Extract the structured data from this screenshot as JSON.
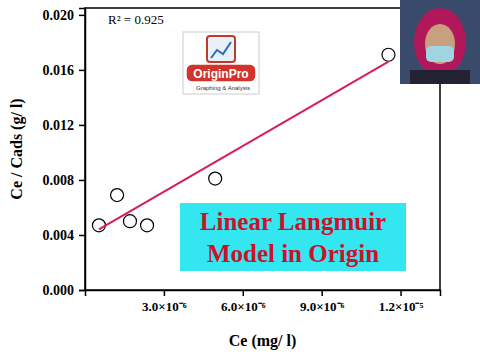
{
  "chart_data": {
    "type": "scatter",
    "title": [
      "Linear Langmuir",
      "Model in Origin"
    ],
    "x_label": "Ce (mg/ l)",
    "y_label": "Ce / Cads (g/ l)",
    "annotations": [
      "R² = 0.925",
      "OriginPro",
      "Graphing & Analysis"
    ],
    "xlim": [
      0,
      1.35e-05
    ],
    "ylim": [
      0,
      0.0205
    ],
    "xticks": [
      {
        "value": 3e-06,
        "label": "3.0×10⁻⁶"
      },
      {
        "value": 6e-06,
        "label": "6.0×10⁻⁶"
      },
      {
        "value": 9e-06,
        "label": "9.0×10⁻⁶"
      },
      {
        "value": 1.2e-05,
        "label": "1.2×10⁻⁵"
      }
    ],
    "yticks": [
      {
        "value": 0,
        "label": "0.000"
      },
      {
        "value": 0.004,
        "label": "0.004"
      },
      {
        "value": 0.008,
        "label": "0.008"
      },
      {
        "value": 0.012,
        "label": "0.012"
      },
      {
        "value": 0.016,
        "label": "0.016"
      },
      {
        "value": 0.02,
        "label": "0.020"
      }
    ],
    "grid": false,
    "series": [
      {
        "type": "scatter",
        "marker": "circle-open",
        "color": "#000000",
        "x": [
          5.3e-07,
          1.22e-06,
          1.71e-06,
          2.36e-06,
          4.95e-06,
          1.154e-05
        ],
        "values": [
          0.0047,
          0.0069,
          0.005,
          0.0047,
          0.0081,
          0.0171
        ]
      },
      {
        "type": "line",
        "line_style": "solid",
        "color": "#d81b60",
        "x": [
          5.3e-07,
          1.154e-05
        ],
        "values": [
          0.0044,
          0.0166
        ]
      }
    ]
  }
}
